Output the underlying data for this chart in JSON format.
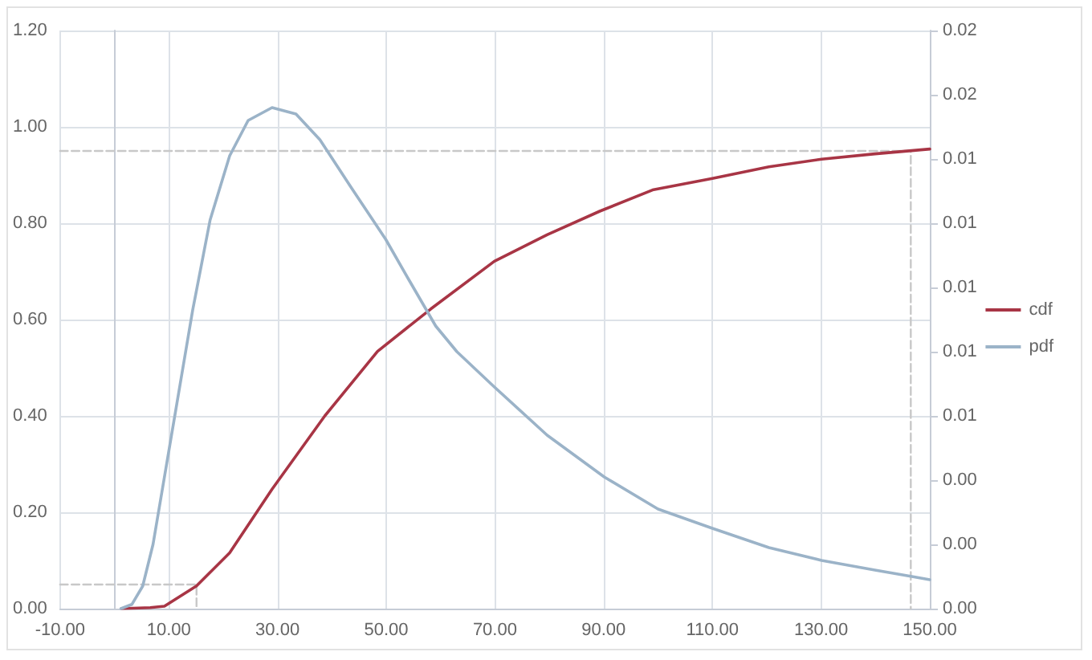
{
  "chart_data": {
    "type": "line",
    "marker": "none",
    "line_style": "solid",
    "grid": true,
    "legend": "right",
    "xlim": [
      -10,
      150
    ],
    "xticks": [
      {
        "value": -10,
        "label": "-10.00"
      },
      {
        "value": 10,
        "label": "10.00"
      },
      {
        "value": 30,
        "label": "30.00"
      },
      {
        "value": 50,
        "label": "50.00"
      },
      {
        "value": 70,
        "label": "70.00"
      },
      {
        "value": 90,
        "label": "90.00"
      },
      {
        "value": 110,
        "label": "110.00"
      },
      {
        "value": 130,
        "label": "130.00"
      },
      {
        "value": 150,
        "label": "150.00"
      }
    ],
    "ylim": [
      0,
      1.2
    ],
    "yticks": [
      {
        "value": 0,
        "label": "0.00"
      },
      {
        "value": 0.2,
        "label": "0.20"
      },
      {
        "value": 0.4,
        "label": "0.40"
      },
      {
        "value": 0.6,
        "label": "0.60"
      },
      {
        "value": 0.8,
        "label": "0.80"
      },
      {
        "value": 1,
        "label": "1.00"
      },
      {
        "value": 1.2,
        "label": "1.20"
      }
    ],
    "y2lim": [
      0,
      0.018
    ],
    "y2ticks": [
      {
        "value": 0,
        "label": "0.00"
      },
      {
        "value": 0.002,
        "label": "0.00"
      },
      {
        "value": 0.004,
        "label": "0.00"
      },
      {
        "value": 0.006,
        "label": "0.01"
      },
      {
        "value": 0.008,
        "label": "0.01"
      },
      {
        "value": 0.01,
        "label": "0.01"
      },
      {
        "value": 0.012,
        "label": "0.01"
      },
      {
        "value": 0.014,
        "label": "0.01"
      },
      {
        "value": 0.016,
        "label": "0.02"
      },
      {
        "value": 0.018,
        "label": "0.02"
      }
    ],
    "series": [
      {
        "name": "cdf",
        "color": "#a83545",
        "x": [
          1.3,
          6.6,
          9.2,
          15.1,
          21.2,
          29,
          38.7,
          48.4,
          58.2,
          69.9,
          79.6,
          89.3,
          99,
          110,
          120.4,
          130.1,
          139.9,
          150
        ],
        "values": [
          0,
          0.002,
          0.005,
          0.047,
          0.116,
          0.248,
          0.4,
          0.534,
          0.622,
          0.721,
          0.776,
          0.825,
          0.869,
          0.893,
          0.917,
          0.933,
          0.944,
          0.954
        ]
      },
      {
        "name": "pdf",
        "color": "#9bb3c8",
        "axis": "y2",
        "x": [
          1.2,
          3.2,
          5.2,
          7.1,
          9.5,
          11.5,
          14.4,
          17.6,
          21.2,
          24.6,
          29,
          33.4,
          37.8,
          43.6,
          49.9,
          54.3,
          59.1,
          63,
          69.9,
          79.6,
          90.1,
          100,
          110,
          120.4,
          130.1,
          139.9,
          146.7,
          150
        ],
        "values": [
          0,
          0.00013,
          0.0007,
          0.002,
          0.0044,
          0.0064,
          0.0093,
          0.0121,
          0.0141,
          0.0152,
          0.0156,
          0.0154,
          0.0146,
          0.0131,
          0.0115,
          0.0102,
          0.0088,
          0.008,
          0.0069,
          0.0054,
          0.0041,
          0.0031,
          0.0025,
          0.0019,
          0.0015,
          0.0012,
          0.001,
          0.0009
        ]
      },
      {
        "color": "#c8c8c8",
        "line_style": "dashed",
        "x": [
          -10,
          146.5,
          146.5
        ],
        "values": [
          0.95,
          0.95,
          0
        ]
      },
      {
        "color": "#c8c8c8",
        "line_style": "dashed",
        "x": [
          -10,
          15.1,
          15.1
        ],
        "values": [
          0.05,
          0.05,
          0
        ]
      }
    ]
  }
}
